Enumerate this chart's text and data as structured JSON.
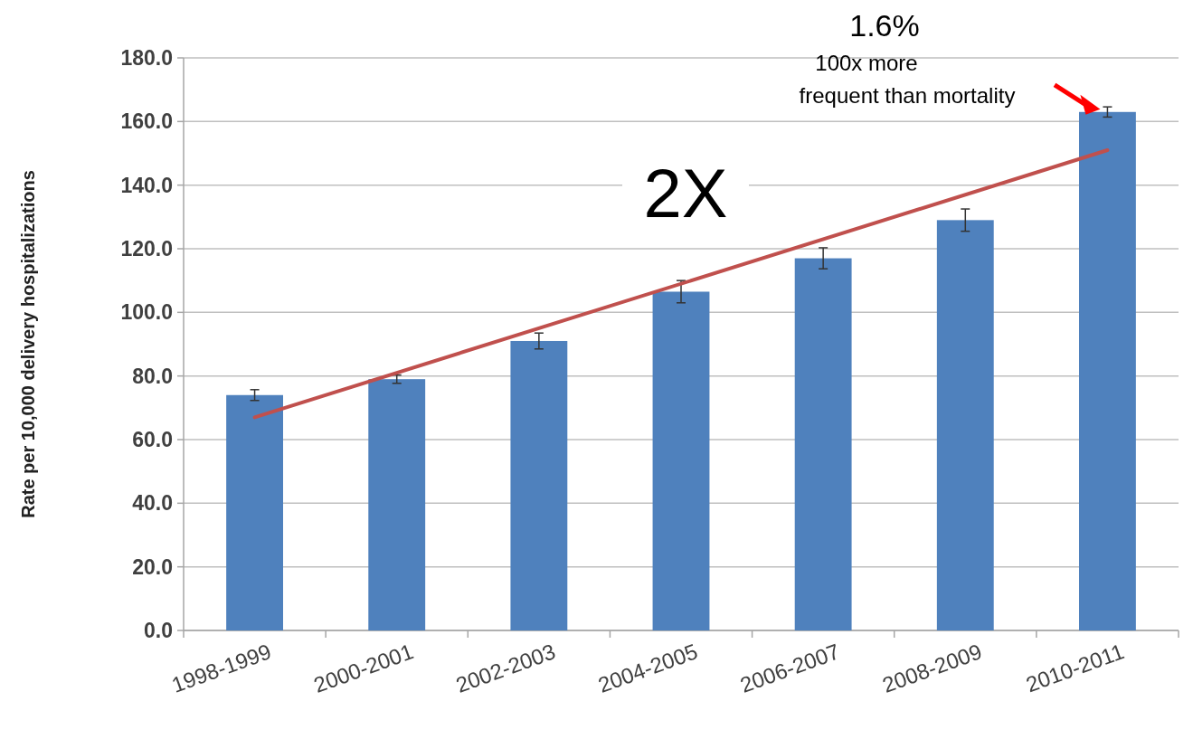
{
  "chart_data": {
    "type": "bar",
    "ylabel": "Rate per 10,000 delivery hospitalizations",
    "categories": [
      "1998-1999",
      "2000-2001",
      "2002-2003",
      "2004-2005",
      "2006-2007",
      "2008-2009",
      "2010-2011"
    ],
    "series": [
      {
        "color": "#4f81bd",
        "values": [
          74,
          79,
          91,
          106.5,
          117,
          129,
          163
        ],
        "errors": [
          1.7,
          1.3,
          2.5,
          3.5,
          3.3,
          3.5,
          1.6
        ]
      },
      {
        "type": "line",
        "color": "#c0504d",
        "x": [
          "1998-1999",
          "2010-2011"
        ],
        "values": [
          67,
          151
        ]
      }
    ],
    "ylim": [
      0,
      180
    ],
    "yticks": [
      {
        "value": 0,
        "label": "0.0"
      },
      {
        "value": 20,
        "label": "20.0"
      },
      {
        "value": 40,
        "label": "40.0"
      },
      {
        "value": 60,
        "label": "60.0"
      },
      {
        "value": 80,
        "label": "80.0"
      },
      {
        "value": 100,
        "label": "100.0"
      },
      {
        "value": 120,
        "label": "120.0"
      },
      {
        "value": 140,
        "label": "140.0"
      },
      {
        "value": 160,
        "label": "160.0"
      },
      {
        "value": 180,
        "label": "180.0"
      }
    ],
    "grid": "y",
    "annotations": [
      "2X",
      "1.6%",
      "100x more\nfrequent than mortality"
    ]
  }
}
